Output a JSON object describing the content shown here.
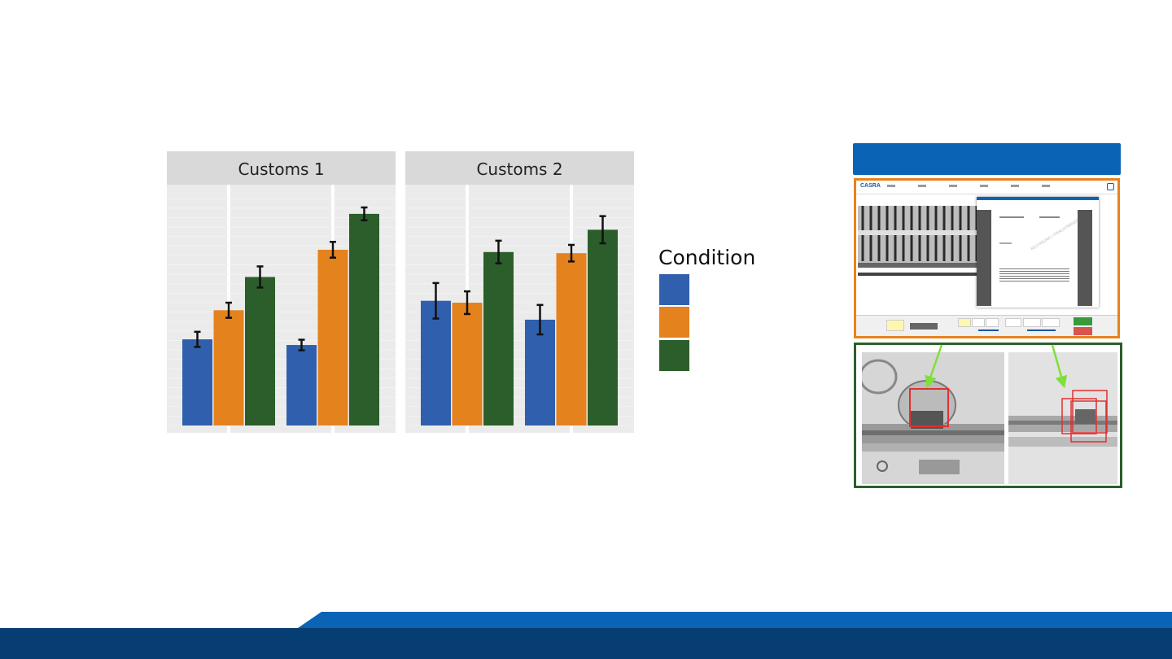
{
  "chart_data": {
    "type": "bar",
    "panels": [
      {
        "title": "Customs 1",
        "groups": [
          {
            "values": [
              22.8,
              30.5,
              39.3
            ],
            "errors": [
              2.0,
              2.0,
              2.8
            ]
          },
          {
            "values": [
              21.3,
              46.5,
              56.0
            ],
            "errors": [
              1.4,
              2.1,
              1.7
            ]
          }
        ]
      },
      {
        "title": "Customs 2",
        "groups": [
          {
            "values": [
              33.0,
              32.5,
              45.9
            ],
            "errors": [
              4.7,
              3.0,
              3.0
            ]
          },
          {
            "values": [
              28.0,
              45.6,
              51.8
            ],
            "errors": [
              3.9,
              2.2,
              3.6
            ]
          }
        ]
      }
    ],
    "ylim": [
      0,
      62
    ],
    "legend": {
      "title": "Condition",
      "placement": "right"
    },
    "colors": [
      "#3060ad",
      "#e4821e",
      "#2b5e2a"
    ],
    "grid": true
  },
  "right_visual": {
    "header_color": "#0a63b4",
    "app_logo": "CASRA",
    "doc_tabs": [
      "LIST",
      "DOCUMENT"
    ],
    "watermark": "RECHNUNG / FRACHTBRIEF",
    "button_colors": [
      "#3a9a3a",
      "#d9534f"
    ]
  },
  "footer_colors": [
    "#0a63b4",
    "#063e73"
  ]
}
